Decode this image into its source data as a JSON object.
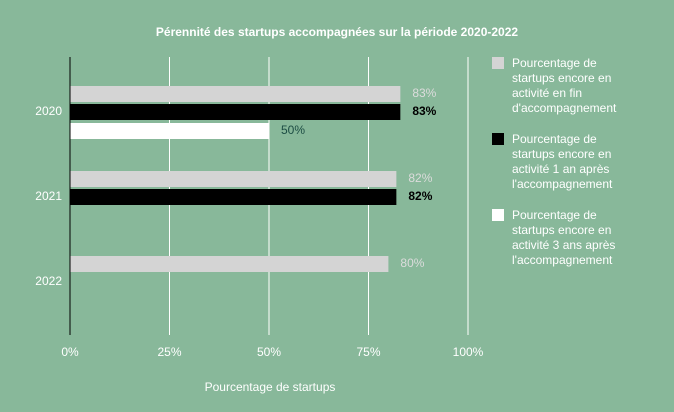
{
  "chart_data": {
    "type": "bar",
    "orientation": "horizontal",
    "title": "Pérennité des startups accompagnées sur la période 2020-2022",
    "x_label": "Pourcentage de startups",
    "categories": [
      "2020",
      "2021",
      "2022"
    ],
    "series": [
      {
        "name": "Pourcentage de startups encore en activité en fin d'accompagnement",
        "color": "#d4d4d4",
        "label_color": "#dcdcdc",
        "values": [
          83,
          82,
          80
        ],
        "value_labels": [
          "83%",
          "82%",
          "80%"
        ]
      },
      {
        "name": "Pourcentage de startups encore en activité 1 an après l'accompagnement",
        "color": "#000000",
        "label_color": "#000000",
        "values": [
          83,
          82,
          null
        ],
        "value_labels": [
          "83%",
          "82%",
          null
        ]
      },
      {
        "name": "Pourcentage de startups encore en activité 3 ans après l'accompagnement",
        "color": "#ffffff",
        "label_color": "#1d4d44",
        "values": [
          50,
          null,
          null
        ],
        "value_labels": [
          "50%",
          null,
          null
        ]
      }
    ],
    "xlim": [
      0,
      100
    ],
    "xticks": [
      {
        "value": 0,
        "label": "0%"
      },
      {
        "value": 25,
        "label": "25%"
      },
      {
        "value": 50,
        "label": "50%"
      },
      {
        "value": 75,
        "label": "75%"
      },
      {
        "value": 100,
        "label": "100%"
      }
    ],
    "grid": true,
    "legend": "right",
    "background": "#88b89a"
  }
}
